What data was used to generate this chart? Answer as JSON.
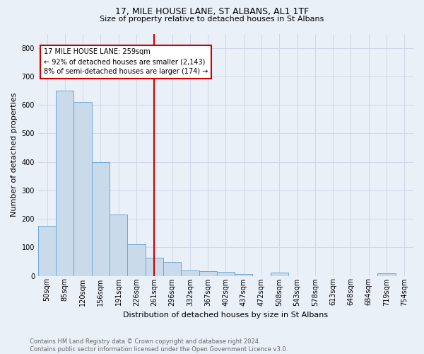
{
  "title1": "17, MILE HOUSE LANE, ST ALBANS, AL1 1TF",
  "title2": "Size of property relative to detached houses in St Albans",
  "xlabel": "Distribution of detached houses by size in St Albans",
  "ylabel": "Number of detached properties",
  "footnote": "Contains HM Land Registry data © Crown copyright and database right 2024.\nContains public sector information licensed under the Open Government Licence v3.0.",
  "bin_labels": [
    "50sqm",
    "85sqm",
    "120sqm",
    "156sqm",
    "191sqm",
    "226sqm",
    "261sqm",
    "296sqm",
    "332sqm",
    "367sqm",
    "402sqm",
    "437sqm",
    "472sqm",
    "508sqm",
    "543sqm",
    "578sqm",
    "613sqm",
    "648sqm",
    "684sqm",
    "719sqm",
    "754sqm"
  ],
  "bar_heights": [
    175,
    650,
    610,
    400,
    215,
    110,
    63,
    48,
    18,
    17,
    13,
    6,
    0,
    10,
    0,
    0,
    0,
    0,
    0,
    8,
    0
  ],
  "bar_color": "#c9daea",
  "bar_edge_color": "#6fa8d6",
  "vline_x_index": 6,
  "vline_color": "#cc0000",
  "annotation_text": "17 MILE HOUSE LANE: 259sqm\n← 92% of detached houses are smaller (2,143)\n8% of semi-detached houses are larger (174) →",
  "annotation_box_color": "white",
  "annotation_box_edge": "#cc0000",
  "ylim": [
    0,
    850
  ],
  "yticks": [
    0,
    100,
    200,
    300,
    400,
    500,
    600,
    700,
    800
  ],
  "grid_color": "#d0d8e8",
  "bg_color": "#eaf0f8",
  "title1_fontsize": 9,
  "title2_fontsize": 8,
  "ylabel_fontsize": 8,
  "xlabel_fontsize": 8,
  "tick_fontsize": 7,
  "footnote_fontsize": 6,
  "footnote_color": "#666666"
}
